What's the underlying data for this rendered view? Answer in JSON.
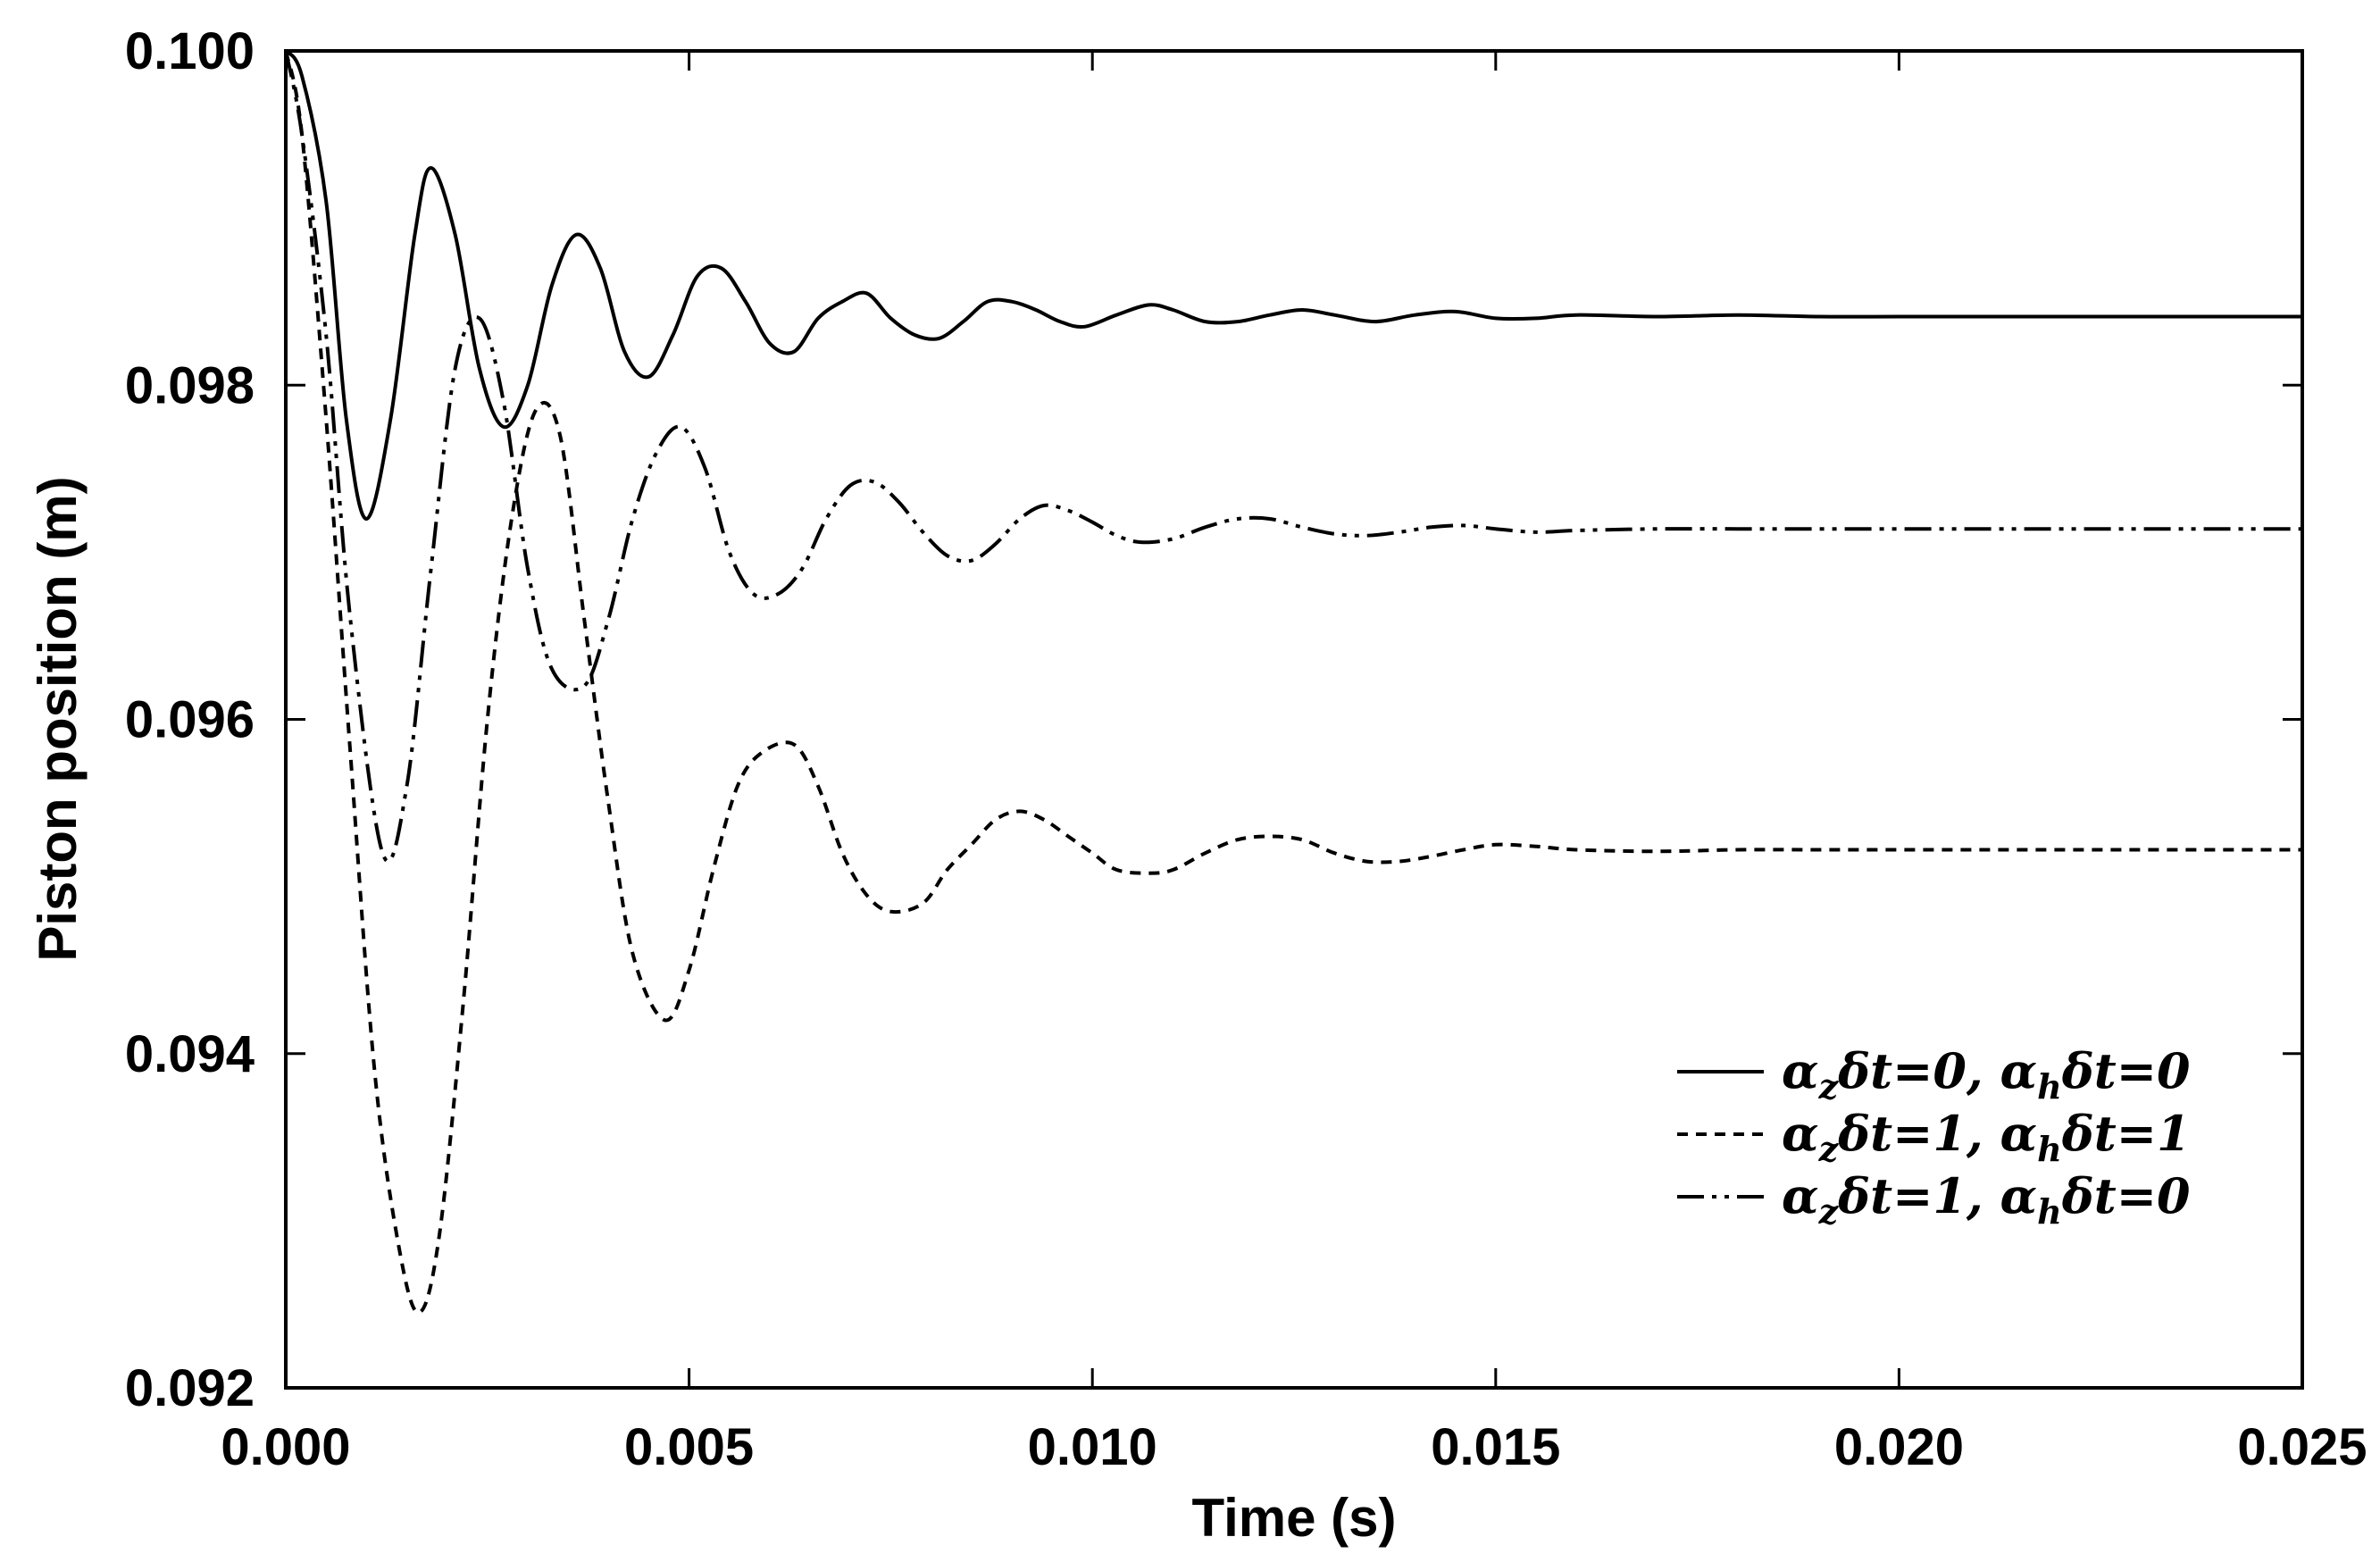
{
  "chart_data": {
    "type": "line",
    "title": "",
    "xlabel": "Time (s)",
    "ylabel": "Piston position (m)",
    "xlim": [
      0.0,
      0.025
    ],
    "ylim": [
      0.092,
      0.1
    ],
    "x_ticks": [
      0.0,
      0.005,
      0.01,
      0.015,
      0.02,
      0.025
    ],
    "x_tick_labels": [
      "0.000",
      "0.005",
      "0.010",
      "0.015",
      "0.020",
      "0.025"
    ],
    "y_ticks": [
      0.092,
      0.094,
      0.096,
      0.098,
      0.1
    ],
    "y_tick_labels": [
      "0.092",
      "0.094",
      "0.096",
      "0.098",
      "0.100"
    ],
    "grid": false,
    "legend_position": "lower-right",
    "series": [
      {
        "name": "αzδt=0, αhδt=0",
        "legend": {
          "a1": "α",
          "s1": "z",
          "m1": "δt=0, ",
          "a2": "α",
          "s2": "h",
          "m2": "δt=0"
        },
        "style": "solid",
        "color": "#000000",
        "x": [
          0.0,
          0.0002,
          0.0005,
          0.00075,
          0.001,
          0.0013,
          0.0016,
          0.0018,
          0.0021,
          0.0024,
          0.0027,
          0.003,
          0.0033,
          0.0036,
          0.0039,
          0.0042,
          0.0045,
          0.0048,
          0.0051,
          0.0054,
          0.0057,
          0.006,
          0.0063,
          0.0066,
          0.0069,
          0.0072,
          0.0075,
          0.0078,
          0.0081,
          0.0084,
          0.0087,
          0.009,
          0.0093,
          0.0096,
          0.0099,
          0.0103,
          0.0107,
          0.011,
          0.0114,
          0.0118,
          0.0122,
          0.0126,
          0.013,
          0.0135,
          0.014,
          0.0145,
          0.015,
          0.0155,
          0.016,
          0.017,
          0.018,
          0.019,
          0.02,
          0.021,
          0.022,
          0.023,
          0.024,
          0.025
        ],
        "y": [
          0.1,
          0.09985,
          0.0991,
          0.0978,
          0.0972,
          0.0978,
          0.0989,
          0.0993,
          0.0989,
          0.0981,
          0.09775,
          0.098,
          0.0986,
          0.0989,
          0.0987,
          0.0982,
          0.09805,
          0.0983,
          0.09865,
          0.0987,
          0.0985,
          0.09825,
          0.0982,
          0.0984,
          0.0985,
          0.09855,
          0.0984,
          0.0983,
          0.09828,
          0.09838,
          0.0985,
          0.0985,
          0.09845,
          0.09838,
          0.09835,
          0.09842,
          0.09848,
          0.09845,
          0.09838,
          0.09838,
          0.09842,
          0.09845,
          0.09842,
          0.09838,
          0.09842,
          0.09844,
          0.0984,
          0.0984,
          0.09842,
          0.09841,
          0.09842,
          0.09841,
          0.09841,
          0.09841,
          0.09841,
          0.09841,
          0.09841,
          0.09841
        ]
      },
      {
        "name": "αzδt=1, αhδt=1",
        "legend": {
          "a1": "α",
          "s1": "z",
          "m1": "δt=1, ",
          "a2": "α",
          "s2": "h",
          "m2": "δt=1"
        },
        "style": "dotted",
        "color": "#000000",
        "x": [
          0.0,
          0.0002,
          0.0005,
          0.0008,
          0.0011,
          0.0014,
          0.00165,
          0.0019,
          0.0022,
          0.0025,
          0.0028,
          0.0031,
          0.0034,
          0.0037,
          0.004,
          0.0043,
          0.0047,
          0.005,
          0.0053,
          0.0056,
          0.0059,
          0.0063,
          0.0066,
          0.0069,
          0.0072,
          0.0075,
          0.0079,
          0.0082,
          0.0085,
          0.0088,
          0.0091,
          0.0094,
          0.0097,
          0.01,
          0.0103,
          0.0107,
          0.011,
          0.0114,
          0.0118,
          0.0122,
          0.0126,
          0.013,
          0.0134,
          0.0138,
          0.0142,
          0.0146,
          0.015,
          0.0155,
          0.016,
          0.017,
          0.018,
          0.019,
          0.02,
          0.021,
          0.022,
          0.023,
          0.024,
          0.025
        ],
        "y": [
          0.1,
          0.0995,
          0.0978,
          0.0958,
          0.0939,
          0.09285,
          0.09245,
          0.0929,
          0.0943,
          0.096,
          0.0972,
          0.09785,
          0.0977,
          0.0966,
          0.0955,
          0.0946,
          0.0942,
          0.0945,
          0.0951,
          0.0956,
          0.0958,
          0.09585,
          0.0956,
          0.0952,
          0.09495,
          0.09485,
          0.0949,
          0.0951,
          0.09525,
          0.0954,
          0.09545,
          0.0954,
          0.0953,
          0.0952,
          0.0951,
          0.09508,
          0.0951,
          0.0952,
          0.09528,
          0.0953,
          0.09528,
          0.0952,
          0.09515,
          0.09515,
          0.09518,
          0.09522,
          0.09525,
          0.09524,
          0.09522,
          0.09521,
          0.09522,
          0.09522,
          0.09522,
          0.09522,
          0.09522,
          0.09522,
          0.09522,
          0.09522
        ]
      },
      {
        "name": "αzδt=1, αhδt=0",
        "legend": {
          "a1": "α",
          "s1": "z",
          "m1": "δt=1, ",
          "a2": "α",
          "s2": "h",
          "m2": "δt=0"
        },
        "style": "dash-dot-dot",
        "color": "#000000",
        "x": [
          0.0,
          0.0002,
          0.0005,
          0.0008,
          0.0012,
          0.0015,
          0.0018,
          0.0021,
          0.0024,
          0.0027,
          0.003,
          0.0033,
          0.0037,
          0.004,
          0.0043,
          0.0046,
          0.0049,
          0.0052,
          0.0055,
          0.0058,
          0.0061,
          0.0064,
          0.0067,
          0.007,
          0.0073,
          0.0076,
          0.0079,
          0.0082,
          0.0085,
          0.0088,
          0.0091,
          0.0094,
          0.0097,
          0.01,
          0.0103,
          0.0106,
          0.011,
          0.0114,
          0.0118,
          0.0122,
          0.0126,
          0.013,
          0.0134,
          0.0138,
          0.0142,
          0.0146,
          0.015,
          0.0155,
          0.016,
          0.017,
          0.018,
          0.019,
          0.02,
          0.021,
          0.022,
          0.023,
          0.024,
          0.025
        ],
        "y": [
          0.1,
          0.0995,
          0.0983,
          0.0966,
          0.0952,
          0.0956,
          0.0969,
          0.0981,
          0.0984,
          0.0979,
          0.0969,
          0.0963,
          0.0962,
          0.0966,
          0.0972,
          0.0976,
          0.09775,
          0.0975,
          0.097,
          0.09675,
          0.09675,
          0.0969,
          0.0972,
          0.0974,
          0.09742,
          0.0973,
          0.09712,
          0.09698,
          0.09695,
          0.09705,
          0.0972,
          0.09728,
          0.09725,
          0.09718,
          0.0971,
          0.09706,
          0.09708,
          0.09715,
          0.0972,
          0.0972,
          0.09715,
          0.09711,
          0.0971,
          0.09712,
          0.09715,
          0.09716,
          0.09714,
          0.09712,
          0.09713,
          0.09714,
          0.09714,
          0.09714,
          0.09714,
          0.09714,
          0.09714,
          0.09714,
          0.09714,
          0.09714
        ]
      }
    ]
  }
}
